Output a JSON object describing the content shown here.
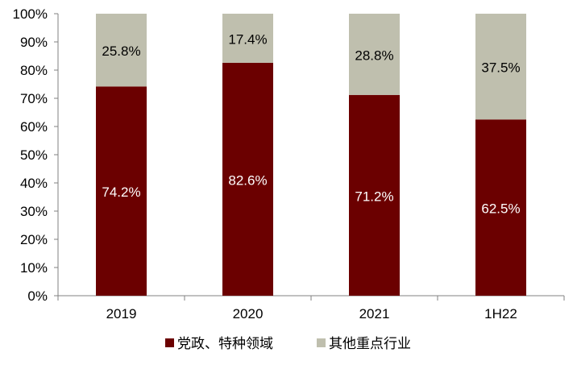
{
  "chart_data": {
    "type": "bar",
    "stacked": true,
    "percent_stacked": true,
    "categories": [
      "2019",
      "2020",
      "2021",
      "1H22"
    ],
    "series": [
      {
        "name": "党政、特种领域",
        "values": [
          74.2,
          82.6,
          71.2,
          62.5
        ],
        "labels": [
          "74.2%",
          "82.6%",
          "71.2%",
          "62.5%"
        ],
        "color": "#6B0000",
        "label_color": "#FFFFFF"
      },
      {
        "name": "其他重点行业",
        "values": [
          25.8,
          17.4,
          28.8,
          37.5
        ],
        "labels": [
          "25.8%",
          "17.4%",
          "28.8%",
          "37.5%"
        ],
        "color": "#BFBFAE",
        "label_color": "#000000"
      }
    ],
    "ylim": [
      0,
      100
    ],
    "y_ticks": [
      0,
      10,
      20,
      30,
      40,
      50,
      60,
      70,
      80,
      90,
      100
    ],
    "y_tick_labels": [
      "0%",
      "10%",
      "20%",
      "30%",
      "40%",
      "50%",
      "60%",
      "70%",
      "80%",
      "90%",
      "100%"
    ],
    "title": "",
    "xlabel": "",
    "ylabel": "",
    "grid": false,
    "legend_position": "bottom",
    "axis_color": "#808080",
    "text_color": "#000000"
  }
}
